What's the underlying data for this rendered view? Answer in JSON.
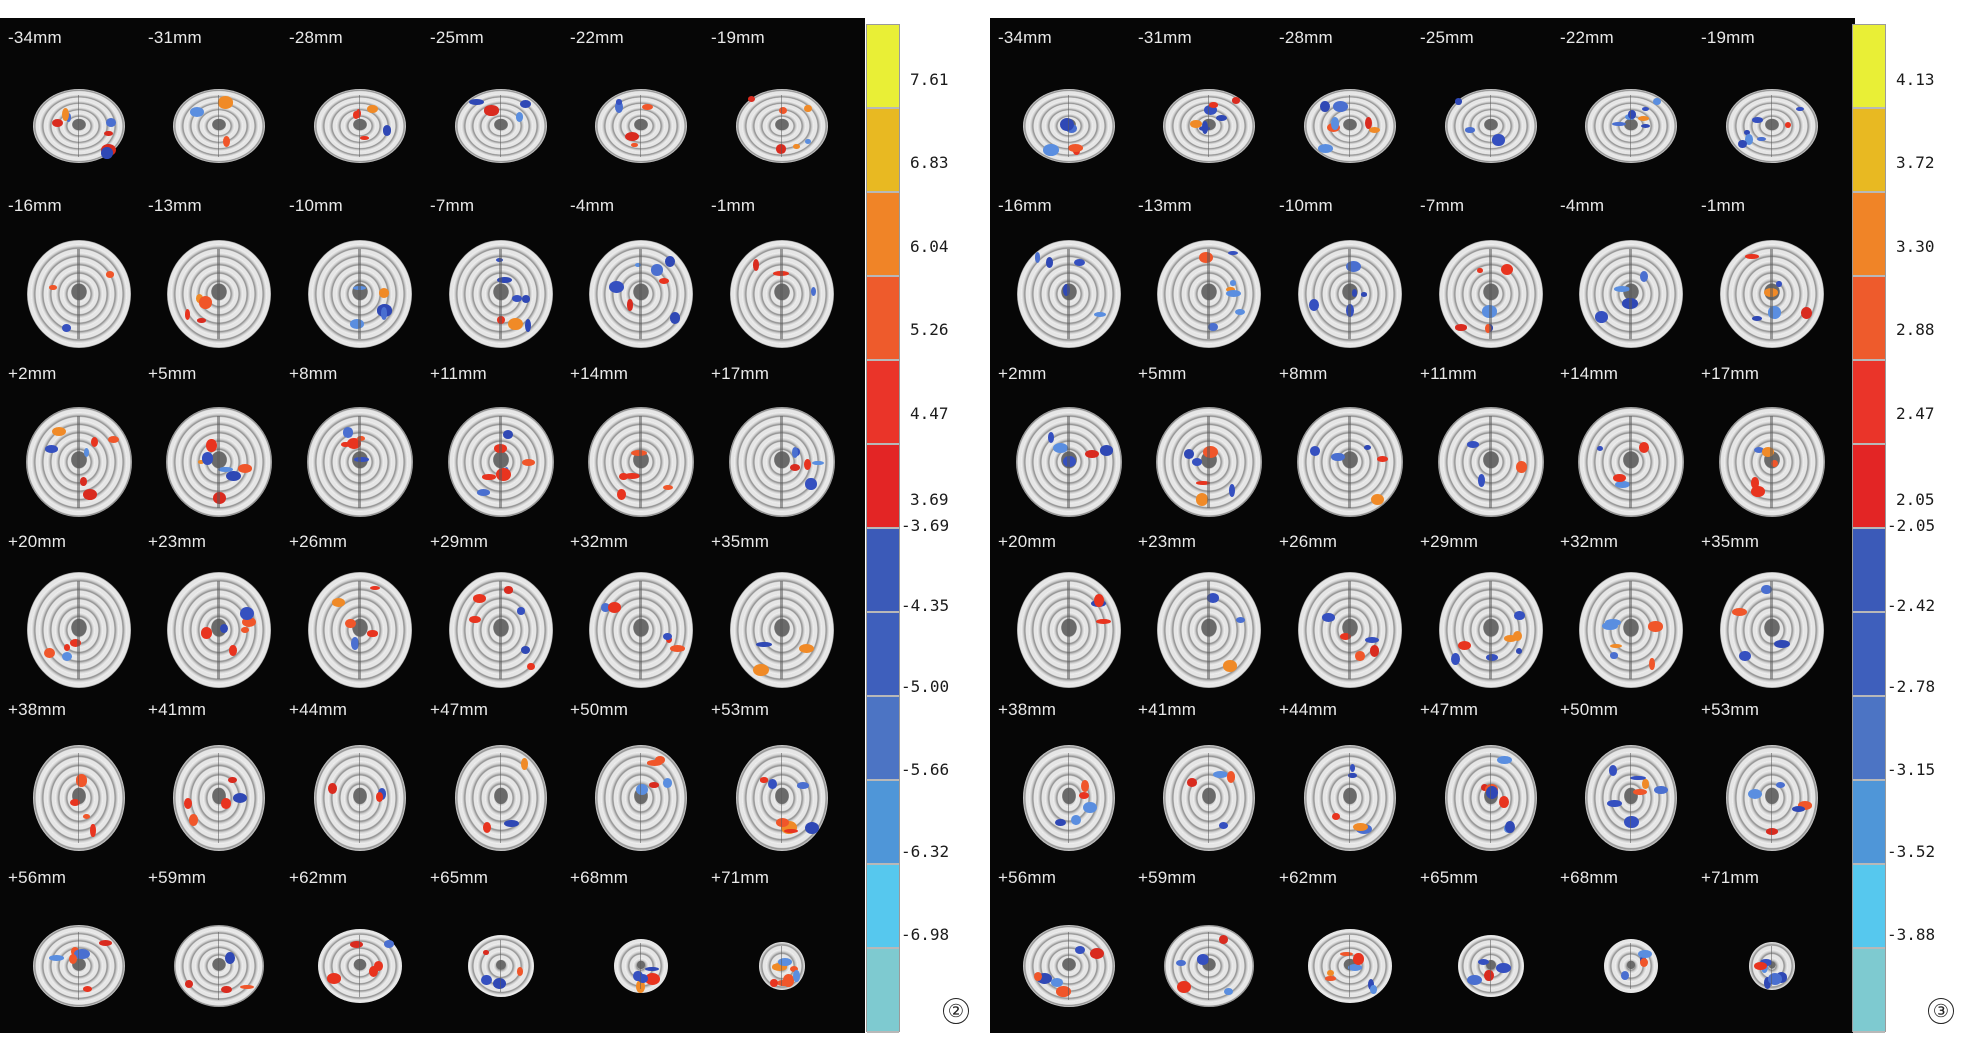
{
  "left_figure": {
    "badge": "②",
    "colorbar_colors": [
      "#e9ef36",
      "#e8b922",
      "#f08427",
      "#ee5b2c",
      "#ea3429",
      "#e32525",
      "#3b5ab8",
      "#3e5fbc",
      "#4c74c4",
      "#4f96d8",
      "#56c8ee",
      "#7ecad0"
    ],
    "ticks": [
      "7.61",
      "6.83",
      "6.04",
      "5.26",
      "4.47",
      "3.69",
      "-3.69",
      "-4.35",
      "-5.00",
      "-5.66",
      "-6.32",
      "-6.98"
    ]
  },
  "right_figure": {
    "badge": "③",
    "colorbar_colors": [
      "#e9ef36",
      "#e8b922",
      "#f08427",
      "#ee5b2c",
      "#ea3429",
      "#e32525",
      "#3b5ab8",
      "#3e5fbc",
      "#4c74c4",
      "#4f96d8",
      "#56c8ee",
      "#7ecad0"
    ],
    "ticks": [
      "4.13",
      "3.72",
      "3.30",
      "2.88",
      "2.47",
      "2.05",
      "-2.05",
      "-2.42",
      "-2.78",
      "-3.15",
      "-3.52",
      "-3.88"
    ]
  },
  "slice_labels": [
    "-34mm",
    "-31mm",
    "-28mm",
    "-25mm",
    "-22mm",
    "-19mm",
    "-16mm",
    "-13mm",
    "-10mm",
    "-7mm",
    "-4mm",
    "-1mm",
    "+2mm",
    "+5mm",
    "+8mm",
    "+11mm",
    "+14mm",
    "+17mm",
    "+20mm",
    "+23mm",
    "+26mm",
    "+29mm",
    "+32mm",
    "+35mm",
    "+38mm",
    "+41mm",
    "+44mm",
    "+47mm",
    "+50mm",
    "+53mm",
    "+56mm",
    "+59mm",
    "+62mm",
    "+65mm",
    "+68mm",
    "+71mm"
  ]
}
